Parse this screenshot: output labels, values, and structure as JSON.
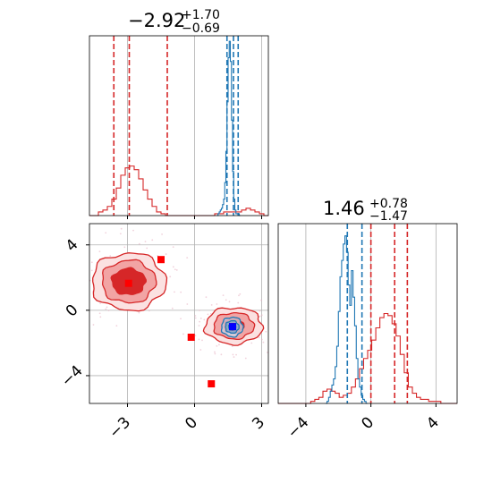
{
  "chart_data": {
    "type": "corner",
    "colors": {
      "red": "#d62728",
      "blue": "#1f77b4",
      "red_fill": "#f4a6a6",
      "point_red": "#ff0000",
      "point_blue": "#0000ff",
      "grid": "#b0b0b0"
    },
    "grid": true,
    "titles": {
      "param1": {
        "value": "−2.92",
        "plus": "+1.70",
        "minus": "−0.69"
      },
      "param2": {
        "value": "1.46",
        "plus": "+0.78",
        "minus": "−1.47"
      }
    },
    "param1_axis": {
      "range": [
        -4.7,
        3.3
      ],
      "ticks": [
        -3,
        0,
        3
      ],
      "tick_labels": [
        "−3",
        "0",
        "3"
      ]
    },
    "param2_axis": {
      "range": [
        -5.7,
        5.3
      ],
      "ticks": [
        -4,
        0,
        4
      ],
      "tick_labels": [
        "−4",
        "0",
        "4"
      ]
    },
    "marginal_param1": {
      "red_quantiles": [
        -3.61,
        -2.92,
        -1.22
      ],
      "blue_quantiles": [
        1.45,
        1.74,
        1.95
      ],
      "red_hist": {
        "bin_start": -4.7,
        "bin_width": 0.2,
        "counts": [
          0,
          0,
          0.02,
          0.03,
          0.05,
          0.09,
          0.15,
          0.22,
          0.26,
          0.27,
          0.25,
          0.2,
          0.14,
          0.09,
          0.05,
          0.02,
          0.01,
          0,
          0,
          0,
          0,
          0,
          0,
          0,
          0,
          0,
          0,
          0,
          0.01,
          0.01,
          0.02,
          0.02,
          0.02,
          0.02,
          0.03,
          0.04,
          0.03,
          0.02,
          0.01,
          0
        ]
      },
      "blue_hist": {
        "bin_start": 1.0,
        "bin_width": 0.05,
        "counts": [
          0,
          0.01,
          0.02,
          0.03,
          0.04,
          0.06,
          0.09,
          0.18,
          0.35,
          0.62,
          0.86,
          0.95,
          0.84,
          0.52,
          0.24,
          0.09,
          0.03,
          0.01,
          0.01,
          0.01,
          0
        ]
      }
    },
    "marginal_param2": {
      "red_quantiles": [
        0.0,
        1.46,
        2.24
      ],
      "blue_quantiles": [
        -1.45,
        -0.55
      ],
      "red_hist": {
        "bin_start": -5.7,
        "bin_width": 0.25,
        "counts": [
          0,
          0,
          0,
          0,
          0,
          0,
          0,
          0,
          0.01,
          0.02,
          0.03,
          0.06,
          0.07,
          0.06,
          0.05,
          0.03,
          0.04,
          0.05,
          0.08,
          0.12,
          0.17,
          0.22,
          0.26,
          0.31,
          0.37,
          0.42,
          0.44,
          0.43,
          0.39,
          0.33,
          0.24,
          0.15,
          0.08,
          0.05,
          0.03,
          0.02,
          0.02,
          0.01,
          0.01,
          0.01,
          0,
          0,
          0,
          0
        ]
      },
      "blue_hist": {
        "bin_start": -2.8,
        "bin_width": 0.1,
        "counts": [
          0,
          0.01,
          0.03,
          0.06,
          0.09,
          0.12,
          0.18,
          0.28,
          0.45,
          0.62,
          0.7,
          0.78,
          0.82,
          0.74,
          0.58,
          0.48,
          0.65,
          0.52,
          0.38,
          0.22,
          0.12,
          0.08,
          0.04,
          0.02,
          0.01,
          0
        ]
      }
    },
    "joint": {
      "red_modes": [
        {
          "cx": -2.95,
          "cy": 1.75,
          "rx": [
            0.75,
            1.2,
            1.65
          ],
          "ry": [
            0.8,
            1.3,
            1.75
          ]
        },
        {
          "cx": 1.75,
          "cy": -0.95,
          "rx": [
            0.45,
            0.9,
            1.28
          ],
          "ry": [
            0.45,
            0.8,
            1.12
          ]
        }
      ],
      "blue_mode": {
        "cx": 1.68,
        "cy": -1.02,
        "rx": [
          0.16,
          0.3,
          0.48
        ],
        "ry": [
          0.2,
          0.38,
          0.6
        ]
      },
      "red_markers": [
        {
          "x": -1.5,
          "y": 3.1
        },
        {
          "x": -2.95,
          "y": 1.65
        },
        {
          "x": -0.15,
          "y": -1.65
        },
        {
          "x": 0.75,
          "y": -4.5
        },
        {
          "x": 1.7,
          "y": -1.0
        }
      ],
      "blue_marker": {
        "x": 1.7,
        "y": -1.0
      }
    }
  }
}
